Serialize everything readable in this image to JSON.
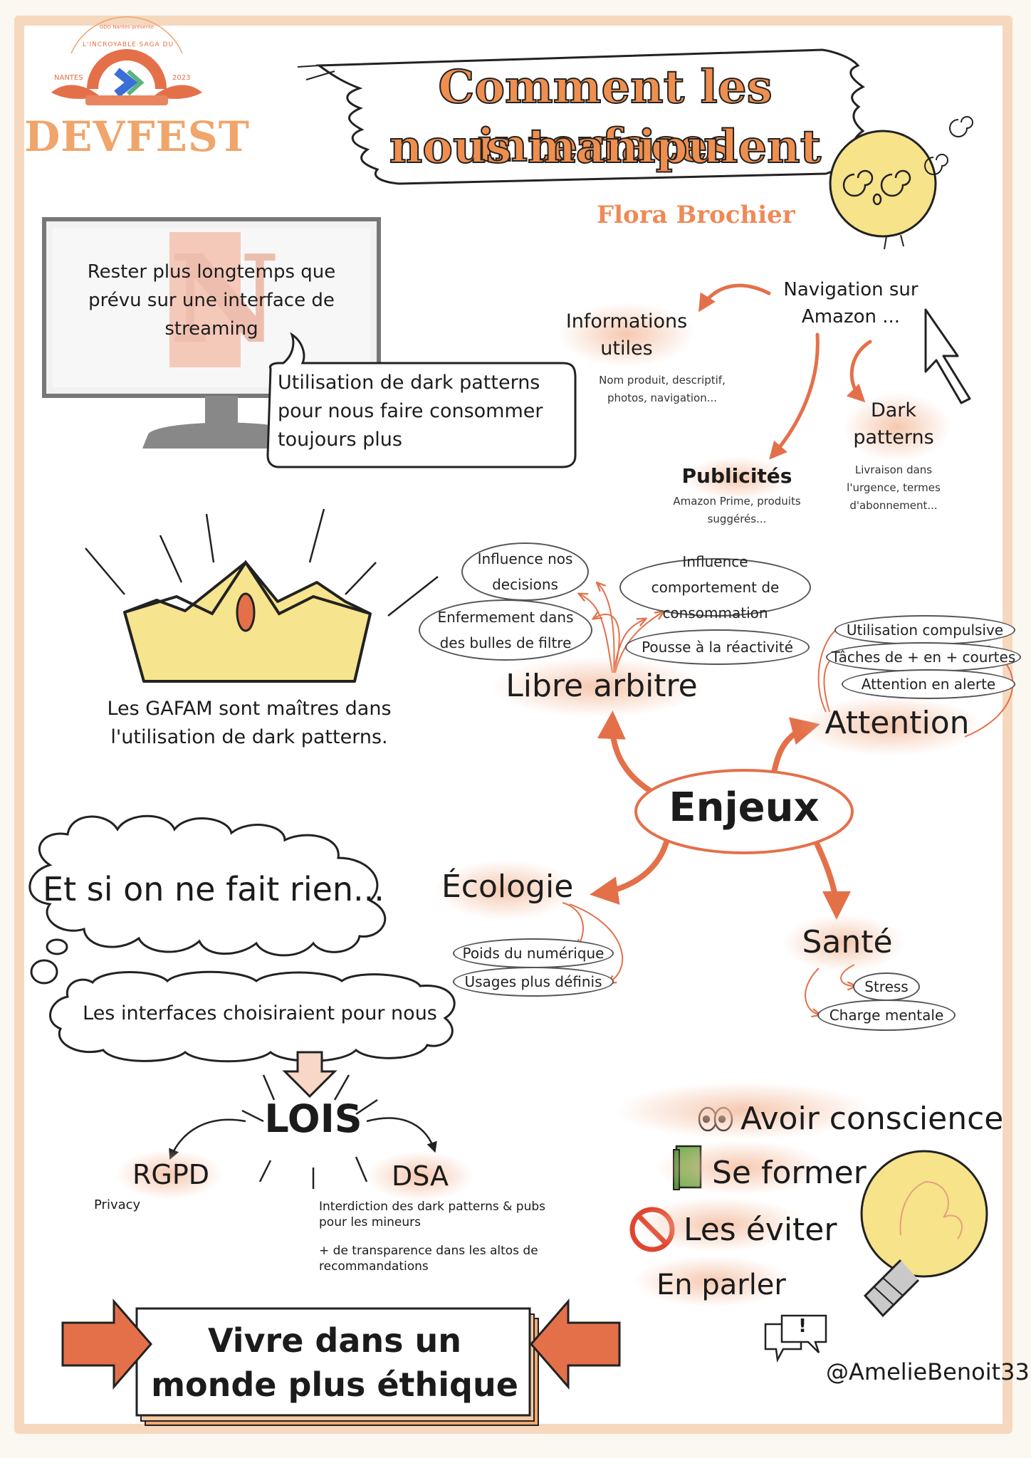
{
  "header": {
    "logo": {
      "small_text": "GDG Nantes présente",
      "arc_text": "L'INCROYABLE SAGA DU",
      "city": "NANTES",
      "year": "2023",
      "name": "DEVFEST",
      "brand_color": "#f0a56b"
    },
    "title_line1": "Comment les interfaces",
    "title_line2": "nous manipulent",
    "author": "Flora Brochier"
  },
  "streaming": {
    "screen_text": "Rester plus longtemps que prévu sur une interface de streaming",
    "screen_logo": "N",
    "bubble_text": "Utilisation de dark patterns pour nous faire consommer toujours plus"
  },
  "amazon": {
    "title": "Navigation sur Amazon ...",
    "useful": {
      "title": "Informations utiles",
      "desc": "Nom produit, descriptif, photos, navigation..."
    },
    "ads": {
      "title": "Publicités",
      "desc": "Amazon Prime, produits suggérés..."
    },
    "dark": {
      "title": "Dark patterns",
      "desc": "Livraison dans l'urgence, termes d'abonnement..."
    }
  },
  "gafam": {
    "text": "Les GAFAM sont maîtres dans l'utilisation de dark patterns."
  },
  "enjeux": {
    "center": "Enjeux",
    "libre_arbitre": {
      "title": "Libre arbitre",
      "items": [
        "Influence nos decisions",
        "Enfermement dans des bulles de filtre",
        "Influence comportement de consommation",
        "Pousse à la réactivité"
      ]
    },
    "attention": {
      "title": "Attention",
      "items": [
        "Utilisation compulsive",
        "Tâches de + en + courtes",
        "Attention en alerte"
      ]
    },
    "ecologie": {
      "title": "Écologie",
      "items": [
        "Poids du numérique",
        "Usages plus définis"
      ]
    },
    "sante": {
      "title": "Santé",
      "items": [
        "Stress",
        "Charge mentale"
      ]
    }
  },
  "rien": {
    "cloud_text": "Et si on ne fait rien...",
    "bubble_text": "Les interfaces choisiraient pour nous"
  },
  "lois": {
    "title": "LOIS",
    "rgpd": {
      "title": "RGPD",
      "desc": "Privacy"
    },
    "dsa": {
      "title": "DSA",
      "desc1": "Interdiction des dark patterns & pubs pour les mineurs",
      "desc2": "+ de transparence dans les altos de recommandations"
    }
  },
  "actions": {
    "items": [
      "Avoir conscience",
      "Se former",
      "Les éviter",
      "En parler"
    ],
    "speech_mark": "!"
  },
  "conclusion": "Vivre dans un monde plus éthique",
  "signature": "@AmelieBenoit33",
  "colors": {
    "accent": "#e4704a",
    "title_fill": "#ef8f4f",
    "highlight": "#f5c0a5",
    "crown": "#f6e48e",
    "bulb": "#f6e38a",
    "book": "#7cb35a",
    "forbidden": "#e0452f"
  }
}
